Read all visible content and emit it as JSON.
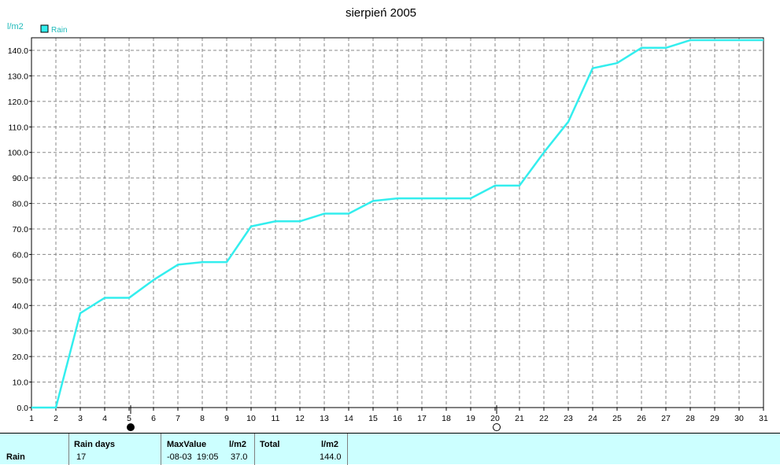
{
  "chart_data": {
    "type": "line",
    "title": "sierpień 2005",
    "ylabel": "l/m2",
    "xlabel": "",
    "x": [
      1,
      2,
      3,
      4,
      5,
      6,
      7,
      8,
      9,
      10,
      11,
      12,
      13,
      14,
      15,
      16,
      17,
      18,
      19,
      20,
      21,
      22,
      23,
      24,
      25,
      26,
      27,
      28,
      29,
      30,
      31
    ],
    "series": [
      {
        "name": "Rain",
        "color": "#33eeee",
        "values": [
          0.0,
          0.0,
          37.0,
          43.0,
          43.0,
          50.0,
          56.0,
          57.0,
          57.0,
          71.0,
          73.0,
          73.0,
          76.0,
          76.0,
          81.0,
          82.0,
          82.0,
          82.0,
          82.0,
          87.0,
          87.0,
          100.0,
          112.0,
          133.0,
          135.0,
          141.0,
          141.0,
          144.0,
          144.0,
          144.0,
          144.0
        ]
      }
    ],
    "xlim": [
      1,
      31
    ],
    "ylim": [
      0,
      145
    ],
    "y_ticks": [
      "0.0",
      "10.0",
      "20.0",
      "30.0",
      "40.0",
      "50.0",
      "60.0",
      "70.0",
      "80.0",
      "90.0",
      "100.0",
      "110.0",
      "120.0",
      "130.0",
      "140.0"
    ],
    "x_ticks": [
      "1",
      "2",
      "3",
      "4",
      "5",
      "6",
      "7",
      "8",
      "9",
      "10",
      "11",
      "12",
      "13",
      "14",
      "15",
      "16",
      "17",
      "18",
      "19",
      "20",
      "21",
      "22",
      "23",
      "24",
      "25",
      "26",
      "27",
      "28",
      "29",
      "30",
      "31"
    ],
    "grid": true,
    "legend": "top-left",
    "moon_phases": [
      {
        "day": 5,
        "phase": "new-moon"
      },
      {
        "day": 20,
        "phase": "full-moon"
      }
    ]
  },
  "footer": {
    "row_label": "Rain",
    "rain_days_header": "Rain days",
    "rain_days_value": "17",
    "max_header": "MaxValue",
    "max_unit": "l/m2",
    "max_date": "-08-03  19:05",
    "max_value": "37.0",
    "total_header": "Total",
    "total_unit": "l/m2",
    "total_value": "144.0"
  }
}
